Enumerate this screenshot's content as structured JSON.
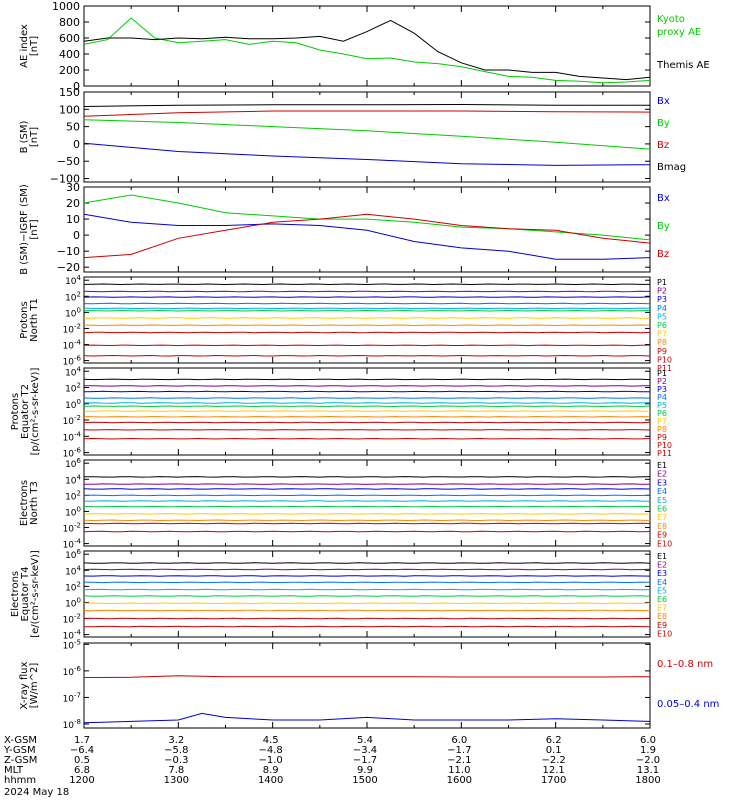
{
  "chart_data": [
    {
      "type": "line",
      "panel": "ae",
      "ylabel": [
        "AE index",
        "[nT]"
      ],
      "ylim": [
        0,
        1000
      ],
      "yticks": [
        0,
        200,
        400,
        600,
        800,
        1000
      ],
      "x": [
        1200,
        1215,
        1230,
        1245,
        1300,
        1315,
        1330,
        1345,
        1400,
        1415,
        1430,
        1445,
        1500,
        1515,
        1530,
        1545,
        1600,
        1615,
        1630,
        1645,
        1700,
        1715,
        1730,
        1745,
        1800
      ],
      "series": [
        {
          "name": "Kyoto proxy AE",
          "color": "#00cc00",
          "values": [
            520,
            580,
            850,
            600,
            540,
            560,
            580,
            520,
            560,
            540,
            450,
            400,
            340,
            350,
            300,
            280,
            240,
            180,
            120,
            110,
            70,
            60,
            40,
            50,
            70
          ]
        },
        {
          "name": "Themis AE",
          "color": "#000000",
          "values": [
            560,
            600,
            600,
            580,
            600,
            590,
            610,
            590,
            590,
            600,
            620,
            560,
            680,
            820,
            660,
            430,
            290,
            200,
            200,
            170,
            170,
            120,
            100,
            80,
            110
          ]
        }
      ],
      "legend": [
        {
          "text": "Kyoto",
          "color": "#00cc00"
        },
        {
          "text": "proxy AE",
          "color": "#00cc00"
        },
        {
          "text": "Themis AE",
          "color": "#000000"
        }
      ]
    },
    {
      "type": "line",
      "panel": "b_sm",
      "ylabel": [
        "B (SM)",
        "[nT]"
      ],
      "ylim": [
        -110,
        150
      ],
      "yticks": [
        -100,
        -50,
        0,
        50,
        100,
        150
      ],
      "x": [
        1200,
        1300,
        1400,
        1500,
        1600,
        1700,
        1800
      ],
      "series": [
        {
          "name": "Bx",
          "color": "#0000cc",
          "values": [
            2,
            -22,
            -35,
            -45,
            -57,
            -62,
            -60
          ]
        },
        {
          "name": "By",
          "color": "#00cc00",
          "values": [
            70,
            62,
            50,
            38,
            22,
            5,
            -15
          ]
        },
        {
          "name": "Bz",
          "color": "#cc0000",
          "values": [
            80,
            90,
            95,
            95,
            95,
            93,
            92
          ]
        },
        {
          "name": "Bmag",
          "color": "#000000",
          "values": [
            108,
            112,
            113,
            113,
            114,
            112,
            112
          ]
        }
      ],
      "legend": [
        {
          "text": "Bx",
          "color": "#0000cc"
        },
        {
          "text": "By",
          "color": "#00cc00"
        },
        {
          "text": "Bz",
          "color": "#cc0000"
        },
        {
          "text": "Bmag",
          "color": "#000000"
        }
      ]
    },
    {
      "type": "line",
      "panel": "b_igrf",
      "ylabel": [
        "B (SM)−IGRF (SM)",
        "[nT]"
      ],
      "ylim": [
        -23,
        30
      ],
      "yticks": [
        -20,
        -10,
        0,
        10,
        20,
        30
      ],
      "x": [
        1200,
        1230,
        1300,
        1330,
        1400,
        1430,
        1500,
        1530,
        1600,
        1630,
        1700,
        1730,
        1800
      ],
      "series": [
        {
          "name": "Bx",
          "color": "#0000cc",
          "values": [
            13,
            8,
            6,
            6,
            7,
            6,
            3,
            -4,
            -8,
            -10,
            -15,
            -15,
            -14
          ]
        },
        {
          "name": "By",
          "color": "#00cc00",
          "values": [
            20,
            25,
            20,
            14,
            12,
            10,
            10,
            8,
            5,
            4,
            2,
            0,
            -3
          ]
        },
        {
          "name": "Bz",
          "color": "#cc0000",
          "values": [
            -14,
            -12,
            -2,
            3,
            8,
            10,
            13,
            10,
            6,
            4,
            3,
            -2,
            -5
          ]
        }
      ],
      "legend": [
        {
          "text": "Bx",
          "color": "#0000cc"
        },
        {
          "text": "By",
          "color": "#00cc00"
        },
        {
          "text": "Bz",
          "color": "#cc0000"
        }
      ]
    },
    {
      "type": "line",
      "panel": "protons_t1",
      "log": true,
      "ylabel": [
        "Protons",
        "North T1"
      ],
      "ylim": [
        -6.3,
        4.4
      ],
      "yticks": [
        -6,
        -4,
        -2,
        0,
        2,
        4
      ],
      "x": [
        1200,
        1800
      ],
      "series": [
        {
          "name": "P1",
          "color": "#000000",
          "values": [
            3.5,
            3.5
          ]
        },
        {
          "name": "P2",
          "color": "#800080",
          "values": [
            2.6,
            2.6
          ]
        },
        {
          "name": "P3",
          "color": "#0000cc",
          "values": [
            1.9,
            1.9
          ]
        },
        {
          "name": "P4",
          "color": "#0070ff",
          "values": [
            1.1,
            1.1
          ]
        },
        {
          "name": "P5",
          "color": "#00b0e0",
          "values": [
            0.5,
            0.5
          ]
        },
        {
          "name": "P6",
          "color": "#00cc44",
          "values": [
            0.2,
            0.2
          ]
        },
        {
          "name": "P7",
          "color": "#ffcc00",
          "values": [
            -0.7,
            -0.7
          ]
        },
        {
          "name": "P8",
          "color": "#ff8800",
          "values": [
            -1.6,
            -1.6
          ]
        },
        {
          "name": "P9",
          "color": "#cc0000",
          "values": [
            -2.5,
            -2.5
          ]
        },
        {
          "name": "P10",
          "color": "#cc0000",
          "values": [
            -4.1,
            -4.1
          ]
        },
        {
          "name": "P11",
          "color": "#cc0000",
          "values": [
            -5.4,
            -5.4
          ]
        }
      ],
      "legend": [
        {
          "text": "P1",
          "color": "#000000"
        },
        {
          "text": "P2",
          "color": "#800080"
        },
        {
          "text": "P3",
          "color": "#0000cc"
        },
        {
          "text": "P4",
          "color": "#0070ff"
        },
        {
          "text": "P5",
          "color": "#00b0e0"
        },
        {
          "text": "P6",
          "color": "#00cc44"
        },
        {
          "text": "P7",
          "color": "#ffcc00"
        },
        {
          "text": "P8",
          "color": "#ff8800"
        },
        {
          "text": "P9",
          "color": "#cc0000"
        },
        {
          "text": "P10",
          "color": "#cc0000"
        },
        {
          "text": "P11",
          "color": "#cc0000"
        }
      ]
    },
    {
      "type": "line",
      "panel": "protons_t2",
      "log": true,
      "ylabel": [
        "Protons",
        "Equator T2",
        "[p/(cm²-s-sr-keV)]"
      ],
      "ylim": [
        -6.3,
        4.4
      ],
      "yticks": [
        -6,
        -4,
        -2,
        0,
        2,
        4
      ],
      "x": [
        1200,
        1800
      ],
      "series": [
        {
          "name": "P1",
          "color": "#000000",
          "values": [
            3.0,
            3.0
          ]
        },
        {
          "name": "P2",
          "color": "#800080",
          "values": [
            2.2,
            2.2
          ]
        },
        {
          "name": "P3",
          "color": "#0000cc",
          "values": [
            1.5,
            1.5
          ]
        },
        {
          "name": "P4",
          "color": "#0070ff",
          "values": [
            0.7,
            0.7
          ]
        },
        {
          "name": "P5",
          "color": "#00b0e0",
          "values": [
            0.1,
            0.1
          ]
        },
        {
          "name": "P6",
          "color": "#00cc44",
          "values": [
            -0.3,
            -0.3
          ]
        },
        {
          "name": "P7",
          "color": "#ffcc00",
          "values": [
            -0.9,
            -0.9
          ]
        },
        {
          "name": "P8",
          "color": "#ff8800",
          "values": [
            -1.6,
            -1.6
          ]
        },
        {
          "name": "P9",
          "color": "#cc0000",
          "values": [
            -2.3,
            -2.3
          ]
        },
        {
          "name": "P10",
          "color": "#cc0000",
          "values": [
            -3.2,
            -3.2
          ]
        },
        {
          "name": "P11",
          "color": "#cc0000",
          "values": [
            -4.3,
            -4.3
          ]
        }
      ],
      "legend": [
        {
          "text": "P1",
          "color": "#000000"
        },
        {
          "text": "P2",
          "color": "#800080"
        },
        {
          "text": "P3",
          "color": "#0000cc"
        },
        {
          "text": "P4",
          "color": "#0070ff"
        },
        {
          "text": "P5",
          "color": "#00b0e0"
        },
        {
          "text": "P6",
          "color": "#00cc44"
        },
        {
          "text": "P7",
          "color": "#ffcc00"
        },
        {
          "text": "P8",
          "color": "#ff8800"
        },
        {
          "text": "P9",
          "color": "#cc0000"
        },
        {
          "text": "P10",
          "color": "#cc0000"
        },
        {
          "text": "P11",
          "color": "#cc0000"
        }
      ]
    },
    {
      "type": "line",
      "panel": "electrons_t3",
      "log": true,
      "ylabel": [
        "Electrons",
        "North T3"
      ],
      "ylim": [
        -4.3,
        6.4
      ],
      "yticks": [
        -4,
        -2,
        0,
        2,
        4,
        6
      ],
      "x": [
        1200,
        1800
      ],
      "series": [
        {
          "name": "E1",
          "color": "#000000",
          "values": [
            4.3,
            4.3
          ]
        },
        {
          "name": "E2",
          "color": "#800080",
          "values": [
            3.4,
            3.4
          ]
        },
        {
          "name": "E3",
          "color": "#0000cc",
          "values": [
            2.8,
            2.8
          ]
        },
        {
          "name": "E4",
          "color": "#0070ff",
          "values": [
            2.0,
            2.0
          ]
        },
        {
          "name": "E5",
          "color": "#00b0e0",
          "values": [
            1.3,
            1.3
          ]
        },
        {
          "name": "E6",
          "color": "#00cc44",
          "values": [
            0.6,
            0.6
          ]
        },
        {
          "name": "E7",
          "color": "#ffcc00",
          "values": [
            -0.3,
            -0.3
          ]
        },
        {
          "name": "E8",
          "color": "#ff8800",
          "values": [
            -1.1,
            -1.1
          ]
        },
        {
          "name": "E9",
          "color": "#cc0000",
          "values": [
            -1.5,
            -1.5
          ]
        },
        {
          "name": "E10",
          "color": "#cc0000",
          "values": [
            -2.5,
            -2.5
          ]
        }
      ],
      "legend": [
        {
          "text": "E1",
          "color": "#000000"
        },
        {
          "text": "E2",
          "color": "#800080"
        },
        {
          "text": "E3",
          "color": "#0000cc"
        },
        {
          "text": "E4",
          "color": "#0070ff"
        },
        {
          "text": "E5",
          "color": "#00b0e0"
        },
        {
          "text": "E6",
          "color": "#00cc44"
        },
        {
          "text": "E7",
          "color": "#ffcc00"
        },
        {
          "text": "E8",
          "color": "#ff8800"
        },
        {
          "text": "E9",
          "color": "#cc0000"
        },
        {
          "text": "E10",
          "color": "#cc0000"
        }
      ]
    },
    {
      "type": "line",
      "panel": "electrons_t4",
      "log": true,
      "ylabel": [
        "Electrons",
        "Equator T4",
        "[e/(cm²-s-sr-keV)]"
      ],
      "ylim": [
        -4.3,
        6.4
      ],
      "yticks": [
        -4,
        -2,
        0,
        2,
        4,
        6
      ],
      "x": [
        1200,
        1800
      ],
      "series": [
        {
          "name": "E1",
          "color": "#000000",
          "values": [
            4.9,
            4.9
          ]
        },
        {
          "name": "E2",
          "color": "#800080",
          "values": [
            4.1,
            4.1
          ]
        },
        {
          "name": "E3",
          "color": "#0000cc",
          "values": [
            3.3,
            3.3
          ]
        },
        {
          "name": "E4",
          "color": "#0070ff",
          "values": [
            2.5,
            2.5
          ]
        },
        {
          "name": "E5",
          "color": "#00b0e0",
          "values": [
            1.6,
            1.6
          ]
        },
        {
          "name": "E6",
          "color": "#00cc44",
          "values": [
            0.8,
            0.8
          ]
        },
        {
          "name": "E7",
          "color": "#ffcc00",
          "values": [
            -0.1,
            -0.1
          ]
        },
        {
          "name": "E8",
          "color": "#ff8800",
          "values": [
            -1.0,
            -1.0
          ]
        },
        {
          "name": "E9",
          "color": "#cc0000",
          "values": [
            -2.0,
            -2.0
          ]
        },
        {
          "name": "E10",
          "color": "#cc0000",
          "values": [
            -3.0,
            -3.0
          ]
        }
      ],
      "legend": [
        {
          "text": "E1",
          "color": "#000000"
        },
        {
          "text": "E2",
          "color": "#800080"
        },
        {
          "text": "E3",
          "color": "#0000cc"
        },
        {
          "text": "E4",
          "color": "#0070ff"
        },
        {
          "text": "E5",
          "color": "#00b0e0"
        },
        {
          "text": "E6",
          "color": "#00cc44"
        },
        {
          "text": "E7",
          "color": "#ffcc00"
        },
        {
          "text": "E8",
          "color": "#ff8800"
        },
        {
          "text": "E9",
          "color": "#cc0000"
        },
        {
          "text": "E10",
          "color": "#cc0000"
        }
      ]
    },
    {
      "type": "line",
      "panel": "xray",
      "log": true,
      "ylabel": [
        "X-ray flux",
        "[W/m^2]"
      ],
      "ylim": [
        -8.15,
        -4.95
      ],
      "yticks": [
        -8,
        -7,
        -6,
        -5
      ],
      "x": [
        1200,
        1230,
        1300,
        1315,
        1330,
        1400,
        1430,
        1500,
        1530,
        1600,
        1630,
        1700,
        1730,
        1800
      ],
      "series": [
        {
          "name": "0.1–0.8 nm",
          "color": "#cc0000",
          "values": [
            -6.25,
            -6.24,
            -6.18,
            -6.2,
            -6.22,
            -6.22,
            -6.22,
            -6.22,
            -6.22,
            -6.23,
            -6.23,
            -6.23,
            -6.23,
            -6.22
          ]
        },
        {
          "name": "0.05–0.4 nm",
          "color": "#0000cc",
          "values": [
            -7.95,
            -7.9,
            -7.85,
            -7.6,
            -7.75,
            -7.85,
            -7.85,
            -7.75,
            -7.85,
            -7.85,
            -7.85,
            -7.8,
            -7.85,
            -7.9
          ]
        }
      ],
      "legend": [
        {
          "text": "0.1–0.8 nm",
          "color": "#cc0000"
        },
        {
          "text": "0.05–0.4 nm",
          "color": "#0000cc"
        }
      ]
    }
  ],
  "footer": {
    "row_labels": [
      "X-GSM",
      "Y-GSM",
      "Z-GSM",
      "MLT",
      "hhmm",
      "2024 May 18"
    ],
    "columns": [
      {
        "values": [
          "1.7",
          "−6.4",
          "0.5",
          "6.8",
          "1200"
        ]
      },
      {
        "values": [
          "3.2",
          "−5.8",
          "−0.3",
          "7.8",
          "1300"
        ]
      },
      {
        "values": [
          "4.5",
          "−4.8",
          "−1.0",
          "8.9",
          "1400"
        ]
      },
      {
        "values": [
          "5.4",
          "−3.4",
          "−1.7",
          "9.9",
          "1500"
        ]
      },
      {
        "values": [
          "6.0",
          "−1.7",
          "−2.1",
          "11.0",
          "1600"
        ]
      },
      {
        "values": [
          "6.2",
          "0.1",
          "−2.2",
          "12.1",
          "1700"
        ]
      },
      {
        "values": [
          "6.0",
          "1.9",
          "−2.0",
          "13.1",
          "1800"
        ]
      }
    ]
  }
}
